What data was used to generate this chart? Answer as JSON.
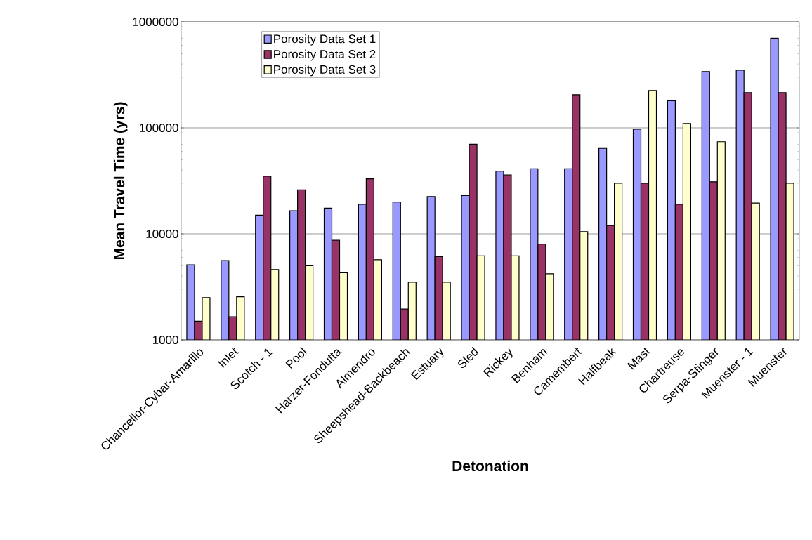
{
  "chart_data": {
    "type": "bar",
    "xlabel": "Detonation",
    "ylabel": "Mean Travel Time (yrs)",
    "categories": [
      "Chancellor-Cybar-Amarillo",
      "Inlet",
      "Scotch - 1",
      "Pool",
      "Harzer-Fondutta",
      "Almendro",
      "Sheepshead-Backbeach",
      "Estuary",
      "Sled",
      "Rickey",
      "Benham",
      "Camembert",
      "Halfbeak",
      "Mast",
      "Chartreuse",
      "Serpa-Stinger",
      "Muenster - 1",
      "Muenster"
    ],
    "series": [
      {
        "name": "Porosity Data Set 1",
        "color": "#9999ff",
        "values": [
          5100,
          5600,
          15000,
          16500,
          17500,
          19000,
          20000,
          22500,
          23000,
          39000,
          41000,
          41000,
          64000,
          97000,
          180000,
          340000,
          350000,
          700000
        ]
      },
      {
        "name": "Porosity Data Set 2",
        "color": "#993366",
        "values": [
          1500,
          1650,
          35000,
          26000,
          8700,
          33000,
          1950,
          6100,
          70000,
          36000,
          8000,
          205000,
          12000,
          30000,
          19000,
          31000,
          215000,
          215000
        ]
      },
      {
        "name": "Porosity Data Set 3",
        "color": "#ffffcc",
        "values": [
          2500,
          2550,
          4600,
          5000,
          4300,
          5700,
          3500,
          3500,
          6200,
          6200,
          4200,
          10500,
          30000,
          225000,
          110000,
          74000,
          19500,
          30000
        ]
      }
    ],
    "log": true,
    "ylim": [
      1000,
      1000000
    ],
    "yticks": [
      1000,
      10000,
      100000,
      1000000
    ],
    "grid": "y",
    "legend": "top left"
  }
}
